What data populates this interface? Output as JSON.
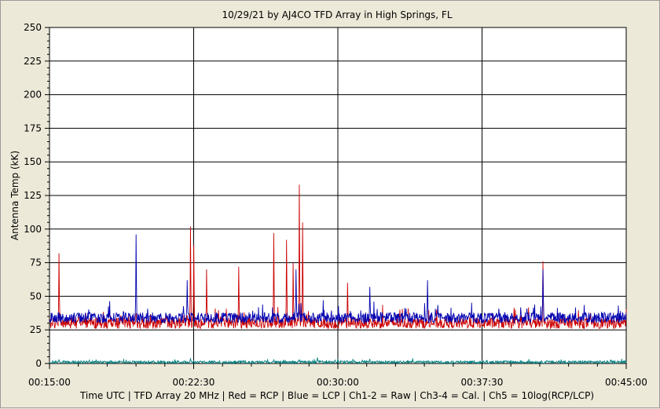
{
  "chart_data": {
    "type": "line",
    "title": "10/29/21  by  AJ4CO TFD Array  in  High Springs, FL",
    "ylabel": "Antenna Temp (kK)",
    "xlabel": "Time UTC | TFD Array 20 MHz | Red = RCP | Blue = LCP | Ch1-2 = Raw | Ch3-4 = Cal. | Ch5 = 10log(RCP/LCP)",
    "ylim": [
      0,
      250
    ],
    "y_ticks": [
      "0",
      "25",
      "50",
      "75",
      "100",
      "125",
      "150",
      "175",
      "200",
      "225",
      "250"
    ],
    "x_range": [
      "00:15:00",
      "00:45:00"
    ],
    "x_ticks": [
      "00:15:00",
      "00:22:30",
      "00:30:00",
      "00:37:30",
      "00:45:00"
    ],
    "grid": true,
    "colors": {
      "rcp": "#cc0000",
      "lcp": "#0000b0",
      "ratio": "#008080",
      "background": "#ffffff",
      "page": "#ece9d8"
    },
    "series": [
      {
        "name": "Red = RCP",
        "color": "#cc0000",
        "baseline": 30,
        "noise": 4,
        "spikes": [
          {
            "t": "00:15:30",
            "value": 82
          },
          {
            "t": "00:22:20",
            "value": 102
          },
          {
            "t": "00:22:30",
            "value": 88
          },
          {
            "t": "00:23:10",
            "value": 70
          },
          {
            "t": "00:24:50",
            "value": 72
          },
          {
            "t": "00:26:40",
            "value": 97
          },
          {
            "t": "00:27:20",
            "value": 92
          },
          {
            "t": "00:27:40",
            "value": 75
          },
          {
            "t": "00:28:00",
            "value": 133
          },
          {
            "t": "00:28:10",
            "value": 105
          },
          {
            "t": "00:30:30",
            "value": 60
          },
          {
            "t": "00:40:40",
            "value": 76
          }
        ]
      },
      {
        "name": "Blue = LCP",
        "color": "#0000b0",
        "baseline": 34,
        "noise": 4,
        "spikes": [
          {
            "t": "00:19:30",
            "value": 96
          },
          {
            "t": "00:22:10",
            "value": 62
          },
          {
            "t": "00:27:50",
            "value": 70
          },
          {
            "t": "00:31:40",
            "value": 57
          },
          {
            "t": "00:34:40",
            "value": 62
          },
          {
            "t": "00:40:40",
            "value": 70
          }
        ]
      },
      {
        "name": "Ch5 = 10log(RCP/LCP)",
        "color": "#008080",
        "baseline": 1,
        "noise": 1,
        "spikes": [
          {
            "t": "00:15:30",
            "value": 3
          },
          {
            "t": "00:22:20",
            "value": 4
          },
          {
            "t": "00:26:40",
            "value": 3
          },
          {
            "t": "00:28:00",
            "value": 3
          }
        ]
      }
    ]
  }
}
